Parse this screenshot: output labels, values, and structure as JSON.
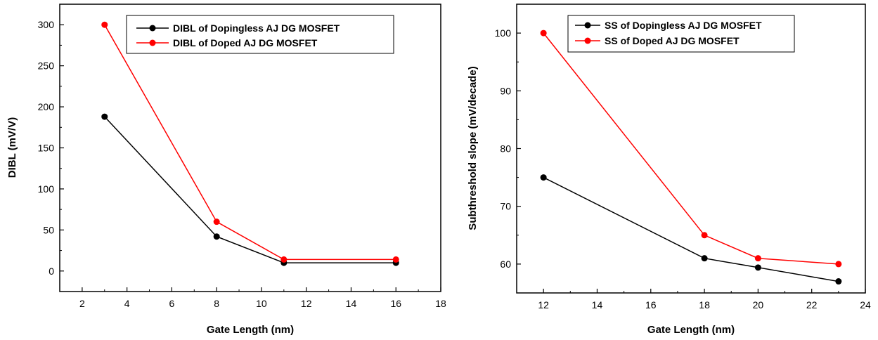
{
  "chart_data": [
    {
      "type": "line",
      "title": "",
      "xlabel": "Gate Length (nm)",
      "ylabel": "DIBL (mV/V)",
      "xlim": [
        1,
        18
      ],
      "ylim": [
        -25,
        325
      ],
      "xticks": [
        2,
        4,
        6,
        8,
        10,
        12,
        14,
        16,
        18
      ],
      "yticks": [
        0,
        50,
        100,
        150,
        200,
        250,
        300
      ],
      "legend_position": "top-right",
      "grid": false,
      "series": [
        {
          "name": "DIBL of Dopingless AJ DG MOSFET",
          "color": "#000000",
          "x": [
            3,
            8,
            11,
            16
          ],
          "y": [
            188,
            42,
            10,
            10
          ]
        },
        {
          "name": "DIBL of Doped AJ DG MOSFET",
          "color": "#ff0000",
          "x": [
            3,
            8,
            11,
            16
          ],
          "y": [
            300,
            60,
            14,
            14
          ]
        }
      ]
    },
    {
      "type": "line",
      "title": "",
      "xlabel": "Gate Length (nm)",
      "ylabel": "Subthreshold slope (mV/decade)",
      "xlim": [
        11,
        24
      ],
      "ylim": [
        55,
        105
      ],
      "xticks": [
        12,
        14,
        16,
        18,
        20,
        22,
        24
      ],
      "yticks": [
        60,
        70,
        80,
        90,
        100
      ],
      "legend_position": "top-right",
      "grid": false,
      "series": [
        {
          "name": "SS of Dopingless AJ DG MOSFET",
          "color": "#000000",
          "x": [
            12,
            18,
            20,
            23
          ],
          "y": [
            75,
            61,
            59.4,
            57
          ]
        },
        {
          "name": "SS of Doped AJ DG MOSFET",
          "color": "#ff0000",
          "x": [
            12,
            18,
            20,
            23
          ],
          "y": [
            100,
            65,
            61,
            60
          ]
        }
      ]
    }
  ]
}
